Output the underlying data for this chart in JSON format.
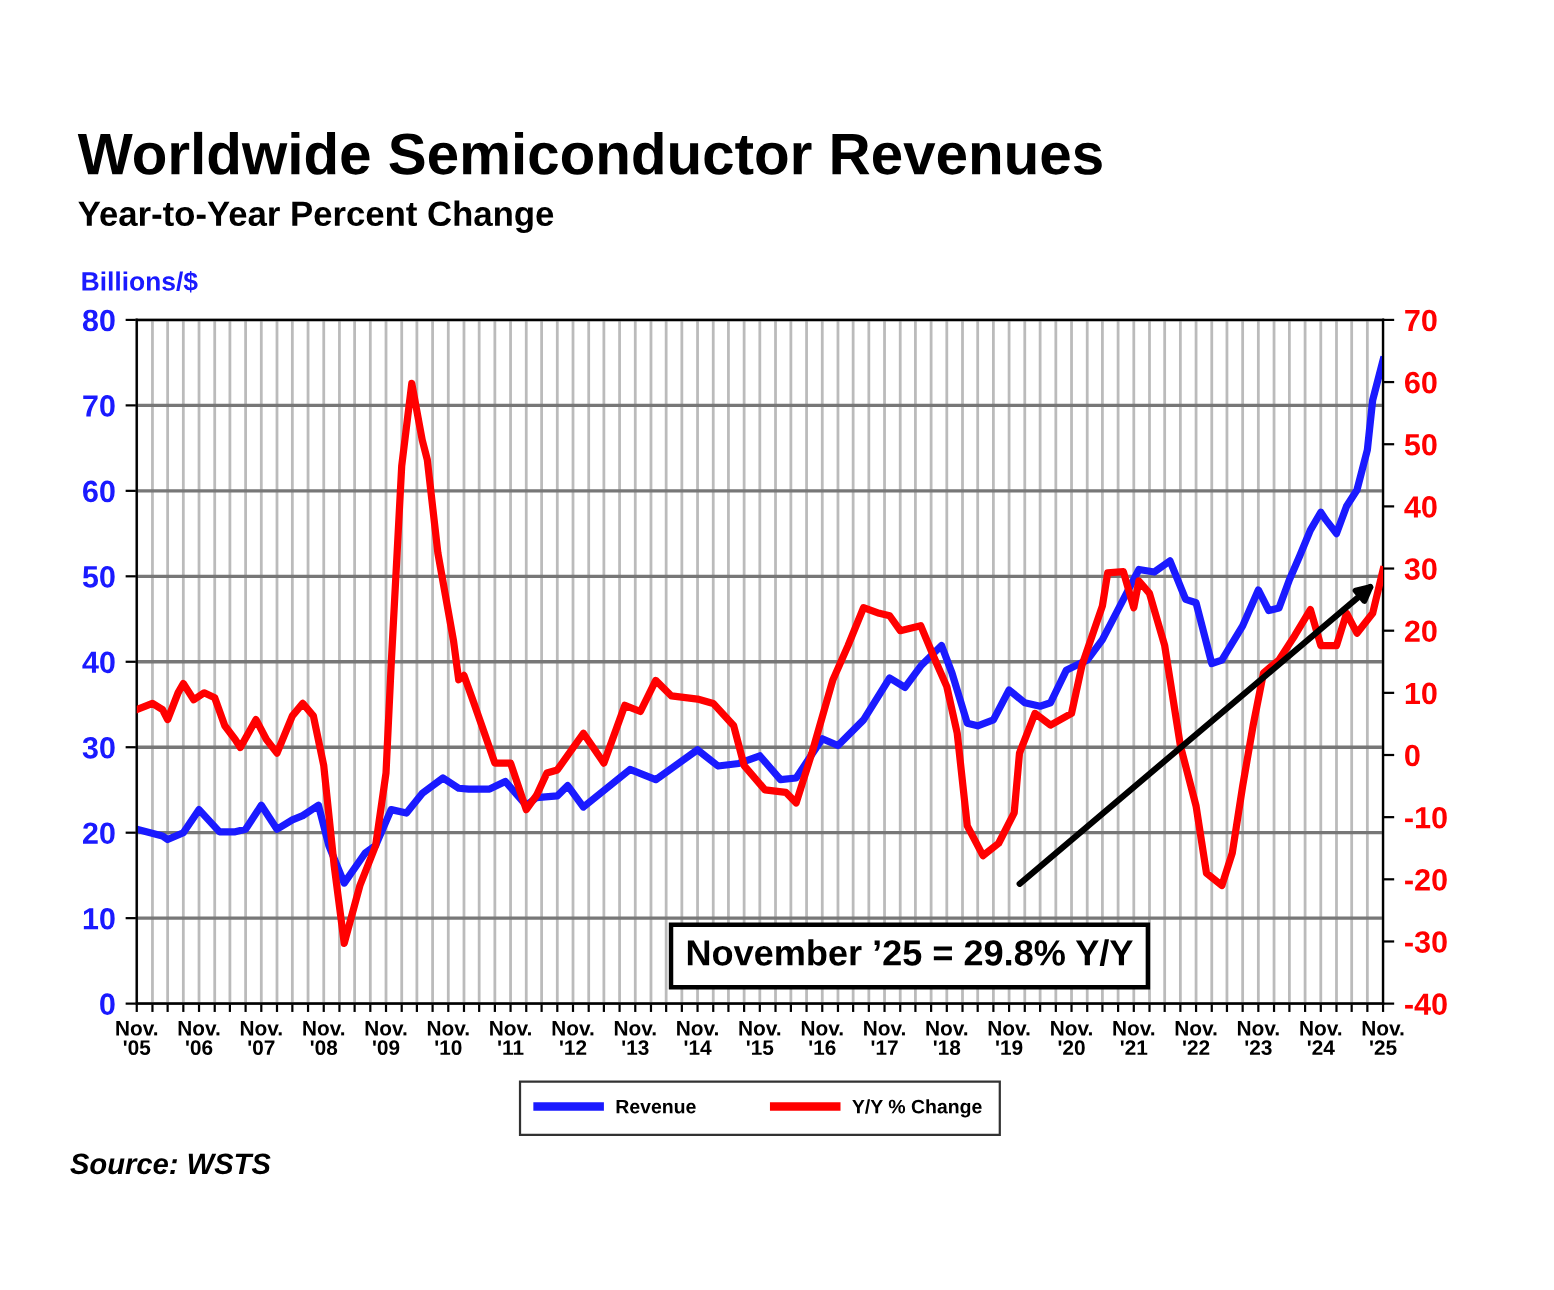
{
  "chart_data": {
    "type": "line",
    "title": "Worldwide Semiconductor Revenues",
    "subtitle": "Year-to-Year Percent Change",
    "ylabel": "Billions/$",
    "series": [
      {
        "name": "Revenue",
        "color": "#1a1aff",
        "x": [
          "2005-11",
          "2006-04",
          "2006-05",
          "2006-08",
          "2006-11",
          "2007-03",
          "2007-06",
          "2007-08",
          "2007-11",
          "2008-02",
          "2008-05",
          "2008-07",
          "2008-10",
          "2008-12",
          "2009-03",
          "2009-07",
          "2009-09",
          "2009-12",
          "2010-03",
          "2010-06",
          "2010-10",
          "2011-01",
          "2011-03",
          "2011-07",
          "2011-10",
          "2012-02",
          "2012-04",
          "2012-08",
          "2012-10",
          "2013-01",
          "2013-10",
          "2014-03",
          "2014-11",
          "2015-03",
          "2015-07",
          "2015-11",
          "2016-03",
          "2016-06",
          "2016-11",
          "2017-02",
          "2017-07",
          "2017-12",
          "2018-03",
          "2018-06",
          "2018-10",
          "2018-12",
          "2019-03",
          "2019-05",
          "2019-08",
          "2019-11",
          "2020-02",
          "2020-05",
          "2020-07",
          "2020-10",
          "2021-02",
          "2021-05",
          "2021-09",
          "2021-12",
          "2022-03",
          "2022-06",
          "2022-09",
          "2022-11",
          "2023-02",
          "2023-04",
          "2023-08",
          "2023-11",
          "2024-01",
          "2024-03",
          "2024-05",
          "2024-07",
          "2024-09",
          "2024-11",
          "2024-12",
          "2025-02",
          "2025-04",
          "2025-06",
          "2025-08",
          "2025-09",
          "2025-11"
        ],
        "values": [
          20.4,
          19.6,
          19.2,
          20,
          22.7,
          20.1,
          20.1,
          20.4,
          23.2,
          20.4,
          21.5,
          22,
          23.2,
          18.5,
          14.1,
          17.6,
          18.5,
          22.7,
          22.3,
          24.6,
          26.4,
          25.2,
          25.1,
          25.1,
          26,
          23.2,
          24.1,
          24.3,
          25.5,
          23,
          27.4,
          26.2,
          29.7,
          27.8,
          28.1,
          29,
          26.2,
          26.4,
          31,
          30.2,
          33.2,
          38.1,
          37,
          39.5,
          41.9,
          38.7,
          32.8,
          32.5,
          33.2,
          36.7,
          35.2,
          34.8,
          35.2,
          39,
          40.2,
          42.6,
          47.3,
          50.8,
          50.5,
          51.8,
          47.3,
          46.9,
          39.8,
          40.2,
          44.2,
          48.4,
          46,
          46.3,
          49.6,
          52.4,
          55.4,
          57.5,
          56.6,
          55,
          58.2,
          60.1,
          64.8,
          70.6,
          75.3
        ]
      },
      {
        "name": "Y/Y % Change",
        "color": "#ff0000",
        "axis": "y2",
        "x": [
          "2005-11",
          "2006-02",
          "2006-04",
          "2006-05",
          "2006-07",
          "2006-08",
          "2006-10",
          "2006-12",
          "2007-02",
          "2007-04",
          "2007-06",
          "2007-07",
          "2007-10",
          "2007-12",
          "2008-02",
          "2008-05",
          "2008-07",
          "2008-09",
          "2008-11",
          "2009-01",
          "2009-03",
          "2009-06",
          "2009-09",
          "2009-11",
          "2009-12",
          "2010-02",
          "2010-04",
          "2010-06",
          "2010-07",
          "2010-09",
          "2010-12",
          "2011-01",
          "2011-02",
          "2011-04",
          "2011-06",
          "2011-08",
          "2011-11",
          "2012-02",
          "2012-04",
          "2012-06",
          "2012-08",
          "2013-01",
          "2013-05",
          "2013-09",
          "2013-12",
          "2014-03",
          "2014-06",
          "2014-11",
          "2015-02",
          "2015-06",
          "2015-08",
          "2015-12",
          "2016-04",
          "2016-06",
          "2016-09",
          "2017-01",
          "2017-04",
          "2017-07",
          "2017-10",
          "2017-12",
          "2018-02",
          "2018-06",
          "2018-09",
          "2018-11",
          "2019-01",
          "2019-03",
          "2019-06",
          "2019-09",
          "2019-12",
          "2020-01",
          "2020-04",
          "2020-07",
          "2020-11",
          "2021-01",
          "2021-05",
          "2021-06",
          "2021-09",
          "2021-11",
          "2021-12",
          "2022-02",
          "2022-05",
          "2022-08",
          "2022-11",
          "2023-01",
          "2023-04",
          "2023-06",
          "2023-08",
          "2023-10",
          "2023-12",
          "2024-03",
          "2024-06",
          "2024-09",
          "2024-11",
          "2025-02",
          "2025-04",
          "2025-06",
          "2025-09",
          "2025-11"
        ],
        "values": [
          7.3,
          8.3,
          7.3,
          5.7,
          10,
          11.5,
          8.9,
          10,
          9.2,
          4.7,
          2.5,
          1.2,
          5.7,
          2.5,
          0.3,
          6.3,
          8.3,
          6.3,
          -1.7,
          -17.8,
          -30.3,
          -21,
          -14.6,
          -2.9,
          14.4,
          46.5,
          59.8,
          50.7,
          47.5,
          32.5,
          18.5,
          12.1,
          12.8,
          8.3,
          3.5,
          -1.3,
          -1.3,
          -8.8,
          -6.5,
          -2.9,
          -2.4,
          3.5,
          -1.3,
          8,
          7,
          12,
          9.5,
          9,
          8.3,
          4.7,
          -1.7,
          -5.6,
          -6,
          -7.7,
          0.3,
          12,
          17.6,
          23.7,
          22.8,
          22.4,
          20,
          20.8,
          14.8,
          11,
          3.5,
          -11.4,
          -16.2,
          -14.2,
          -9.3,
          0.3,
          6.7,
          4.8,
          6.7,
          14.4,
          24,
          29.3,
          29.5,
          23.7,
          28,
          26,
          17.6,
          1.5,
          -8.2,
          -19,
          -21,
          -15.8,
          -5,
          4.7,
          13.2,
          15.3,
          19.2,
          23.4,
          17.6,
          17.6,
          22.8,
          19.6,
          22.8,
          29.8
        ]
      }
    ],
    "xlim": [
      "2005-11",
      "2025-11"
    ],
    "xticks": [
      {
        "value": "2005-11",
        "label": "Nov.\n'05"
      },
      {
        "value": "2006-02",
        "label": null
      },
      {
        "value": "2006-05",
        "label": null
      },
      {
        "value": "2006-08",
        "label": null
      },
      {
        "value": "2006-11",
        "label": "Nov.\n'06"
      },
      {
        "value": "2007-02",
        "label": null
      },
      {
        "value": "2007-05",
        "label": null
      },
      {
        "value": "2007-08",
        "label": null
      },
      {
        "value": "2007-11",
        "label": "Nov.\n'07"
      },
      {
        "value": "2008-02",
        "label": null
      },
      {
        "value": "2008-05",
        "label": null
      },
      {
        "value": "2008-08",
        "label": null
      },
      {
        "value": "2008-11",
        "label": "Nov.\n'08"
      },
      {
        "value": "2009-02",
        "label": null
      },
      {
        "value": "2009-05",
        "label": null
      },
      {
        "value": "2009-08",
        "label": null
      },
      {
        "value": "2009-11",
        "label": "Nov.\n'09"
      },
      {
        "value": "2010-02",
        "label": null
      },
      {
        "value": "2010-05",
        "label": null
      },
      {
        "value": "2010-08",
        "label": null
      },
      {
        "value": "2010-11",
        "label": "Nov.\n'10"
      },
      {
        "value": "2011-02",
        "label": null
      },
      {
        "value": "2011-05",
        "label": null
      },
      {
        "value": "2011-08",
        "label": null
      },
      {
        "value": "2011-11",
        "label": "Nov.\n'11"
      },
      {
        "value": "2012-02",
        "label": null
      },
      {
        "value": "2012-05",
        "label": null
      },
      {
        "value": "2012-08",
        "label": null
      },
      {
        "value": "2012-11",
        "label": "Nov.\n'12"
      },
      {
        "value": "2013-02",
        "label": null
      },
      {
        "value": "2013-05",
        "label": null
      },
      {
        "value": "2013-08",
        "label": null
      },
      {
        "value": "2013-11",
        "label": "Nov.\n'13"
      },
      {
        "value": "2014-02",
        "label": null
      },
      {
        "value": "2014-05",
        "label": null
      },
      {
        "value": "2014-08",
        "label": null
      },
      {
        "value": "2014-11",
        "label": "Nov.\n'14"
      },
      {
        "value": "2015-02",
        "label": null
      },
      {
        "value": "2015-05",
        "label": null
      },
      {
        "value": "2015-08",
        "label": null
      },
      {
        "value": "2015-11",
        "label": "Nov.\n'15"
      },
      {
        "value": "2016-02",
        "label": null
      },
      {
        "value": "2016-05",
        "label": null
      },
      {
        "value": "2016-08",
        "label": null
      },
      {
        "value": "2016-11",
        "label": "Nov.\n'16"
      },
      {
        "value": "2017-02",
        "label": null
      },
      {
        "value": "2017-05",
        "label": null
      },
      {
        "value": "2017-08",
        "label": null
      },
      {
        "value": "2017-11",
        "label": "Nov.\n'17"
      },
      {
        "value": "2018-02",
        "label": null
      },
      {
        "value": "2018-05",
        "label": null
      },
      {
        "value": "2018-08",
        "label": null
      },
      {
        "value": "2018-11",
        "label": "Nov.\n'18"
      },
      {
        "value": "2019-02",
        "label": null
      },
      {
        "value": "2019-05",
        "label": null
      },
      {
        "value": "2019-08",
        "label": null
      },
      {
        "value": "2019-11",
        "label": "Nov.\n'19"
      },
      {
        "value": "2020-02",
        "label": null
      },
      {
        "value": "2020-05",
        "label": null
      },
      {
        "value": "2020-08",
        "label": null
      },
      {
        "value": "2020-11",
        "label": "Nov.\n'20"
      },
      {
        "value": "2021-02",
        "label": null
      },
      {
        "value": "2021-05",
        "label": null
      },
      {
        "value": "2021-08",
        "label": null
      },
      {
        "value": "2021-11",
        "label": "Nov.\n'21"
      },
      {
        "value": "2022-02",
        "label": null
      },
      {
        "value": "2022-05",
        "label": null
      },
      {
        "value": "2022-08",
        "label": null
      },
      {
        "value": "2022-11",
        "label": "Nov.\n'22"
      },
      {
        "value": "2023-02",
        "label": null
      },
      {
        "value": "2023-05",
        "label": null
      },
      {
        "value": "2023-08",
        "label": null
      },
      {
        "value": "2023-11",
        "label": "Nov.\n'23"
      },
      {
        "value": "2024-02",
        "label": null
      },
      {
        "value": "2024-05",
        "label": null
      },
      {
        "value": "2024-08",
        "label": null
      },
      {
        "value": "2024-11",
        "label": "Nov.\n'24"
      },
      {
        "value": "2025-02",
        "label": null
      },
      {
        "value": "2025-05",
        "label": null
      },
      {
        "value": "2025-08",
        "label": null
      },
      {
        "value": "2025-11",
        "label": "Nov.\n'25"
      }
    ],
    "ylim": [
      0,
      80
    ],
    "yticks": [
      0,
      10,
      20,
      30,
      40,
      50,
      60,
      70,
      80
    ],
    "y2lim": [
      -40,
      70
    ],
    "y2ticks": [
      -40,
      -30,
      -20,
      -10,
      0,
      10,
      20,
      30,
      40,
      50,
      60,
      70
    ],
    "grid": true,
    "legend": "bottom",
    "marker": "none",
    "line_style": "solid",
    "annotations": [
      "November ’25 = 29.8% Y/Y",
      "Source: WSTS"
    ]
  }
}
